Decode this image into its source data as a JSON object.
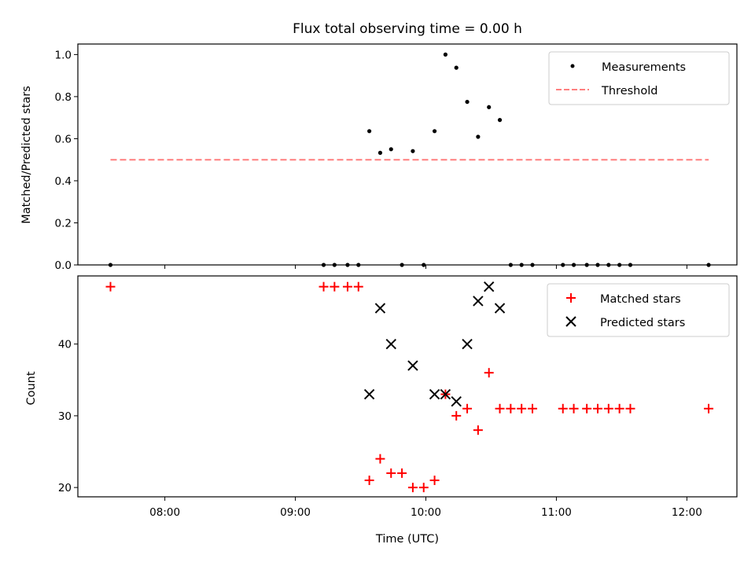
{
  "chart_data": [
    {
      "type": "scatter",
      "title": "Flux total observing time = 0.00 h",
      "xlabel": "",
      "ylabel": "Matched/Predicted stars",
      "x_axis": "time (UTC), shared with lower panel",
      "ylim": [
        0.0,
        1.05
      ],
      "yticks": [
        0.0,
        0.2,
        0.4,
        0.6,
        0.8,
        1.0
      ],
      "ytick_labels": [
        "0.0",
        "0.2",
        "0.4",
        "0.6",
        "0.8",
        "1.0"
      ],
      "legend_position": "top-right",
      "series": [
        {
          "name": "Measurements",
          "marker": "dot",
          "color": "#000000",
          "points": [
            [
              "07:35",
              0.0
            ],
            [
              "09:13",
              0.0
            ],
            [
              "09:18",
              0.0
            ],
            [
              "09:24",
              0.0
            ],
            [
              "09:29",
              0.0
            ],
            [
              "09:34",
              0.636
            ],
            [
              "09:39",
              0.533
            ],
            [
              "09:44",
              0.55
            ],
            [
              "09:49",
              0.0
            ],
            [
              "09:54",
              0.541
            ],
            [
              "09:59",
              0.0
            ],
            [
              "10:04",
              0.636
            ],
            [
              "10:09",
              1.0
            ],
            [
              "10:14",
              0.9375
            ],
            [
              "10:19",
              0.775
            ],
            [
              "10:24",
              0.609
            ],
            [
              "10:29",
              0.75
            ],
            [
              "10:34",
              0.689
            ],
            [
              "10:39",
              0.0
            ],
            [
              "10:44",
              0.0
            ],
            [
              "10:49",
              0.0
            ],
            [
              "11:03",
              0.0
            ],
            [
              "11:08",
              0.0
            ],
            [
              "11:14",
              0.0
            ],
            [
              "11:19",
              0.0
            ],
            [
              "11:24",
              0.0
            ],
            [
              "11:29",
              0.0
            ],
            [
              "11:34",
              0.0
            ],
            [
              "12:10",
              0.0
            ]
          ]
        },
        {
          "name": "Threshold",
          "style": "dashed",
          "color": "#ff7f7f",
          "points": [
            [
              "07:35",
              0.5
            ],
            [
              "12:10",
              0.5
            ]
          ]
        }
      ]
    },
    {
      "type": "scatter",
      "title": "",
      "xlabel": "Time (UTC)",
      "ylabel": "Count",
      "ylim": [
        18.7,
        49.5
      ],
      "yticks": [
        20,
        30,
        40
      ],
      "ytick_labels": [
        "20",
        "30",
        "40"
      ],
      "xticks": [
        "08:00",
        "09:00",
        "10:00",
        "11:00",
        "12:00"
      ],
      "xlim": [
        "07:20",
        "12:23"
      ],
      "legend_position": "top-right",
      "series": [
        {
          "name": "Matched stars",
          "marker": "plus",
          "color": "#ff0000",
          "points": [
            [
              "07:35",
              48
            ],
            [
              "09:13",
              48
            ],
            [
              "09:18",
              48
            ],
            [
              "09:24",
              48
            ],
            [
              "09:29",
              48
            ],
            [
              "09:34",
              21
            ],
            [
              "09:39",
              24
            ],
            [
              "09:44",
              22
            ],
            [
              "09:49",
              22
            ],
            [
              "09:54",
              20
            ],
            [
              "09:59",
              20
            ],
            [
              "10:04",
              21
            ],
            [
              "10:09",
              33
            ],
            [
              "10:14",
              30
            ],
            [
              "10:19",
              31
            ],
            [
              "10:24",
              28
            ],
            [
              "10:29",
              36
            ],
            [
              "10:34",
              31
            ],
            [
              "10:39",
              31
            ],
            [
              "10:44",
              31
            ],
            [
              "10:49",
              31
            ],
            [
              "11:03",
              31
            ],
            [
              "11:08",
              31
            ],
            [
              "11:14",
              31
            ],
            [
              "11:19",
              31
            ],
            [
              "11:24",
              31
            ],
            [
              "11:29",
              31
            ],
            [
              "11:34",
              31
            ],
            [
              "12:10",
              31
            ]
          ]
        },
        {
          "name": "Predicted stars",
          "marker": "x",
          "color": "#000000",
          "points": [
            [
              "09:34",
              33
            ],
            [
              "09:39",
              45
            ],
            [
              "09:44",
              40
            ],
            [
              "09:54",
              37
            ],
            [
              "10:04",
              33
            ],
            [
              "10:09",
              33
            ],
            [
              "10:14",
              32
            ],
            [
              "10:19",
              40
            ],
            [
              "10:24",
              46
            ],
            [
              "10:29",
              48
            ],
            [
              "10:34",
              45
            ]
          ]
        }
      ]
    }
  ]
}
